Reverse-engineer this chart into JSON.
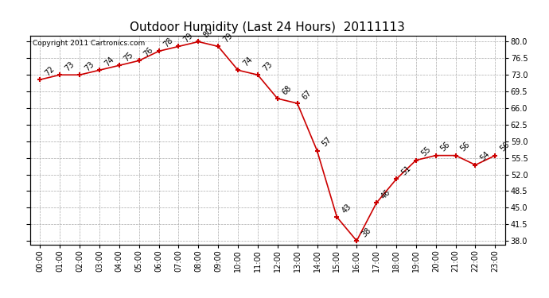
{
  "title": "Outdoor Humidity (Last 24 Hours)  20111113",
  "copyright": "Copyright 2011 Cartronics.com",
  "hours": [
    "00:00",
    "01:00",
    "02:00",
    "03:00",
    "04:00",
    "05:00",
    "06:00",
    "07:00",
    "08:00",
    "09:00",
    "10:00",
    "11:00",
    "12:00",
    "13:00",
    "14:00",
    "15:00",
    "16:00",
    "17:00",
    "18:00",
    "19:00",
    "20:00",
    "21:00",
    "22:00",
    "23:00"
  ],
  "values": [
    72,
    73,
    73,
    74,
    75,
    76,
    78,
    79,
    80,
    79,
    74,
    73,
    68,
    67,
    57,
    43,
    38,
    46,
    51,
    55,
    56,
    56,
    54,
    56
  ],
  "ylim_min": 37.25,
  "ylim_max": 81.25,
  "yticks": [
    38.0,
    41.5,
    45.0,
    48.5,
    52.0,
    55.5,
    59.0,
    62.5,
    66.0,
    69.5,
    73.0,
    76.5,
    80.0
  ],
  "line_color": "#cc0000",
  "grid_color": "#aaaaaa",
  "bg_color": "#ffffff",
  "title_fontsize": 11,
  "label_fontsize": 7,
  "tick_fontsize": 7,
  "copyright_fontsize": 6.5
}
